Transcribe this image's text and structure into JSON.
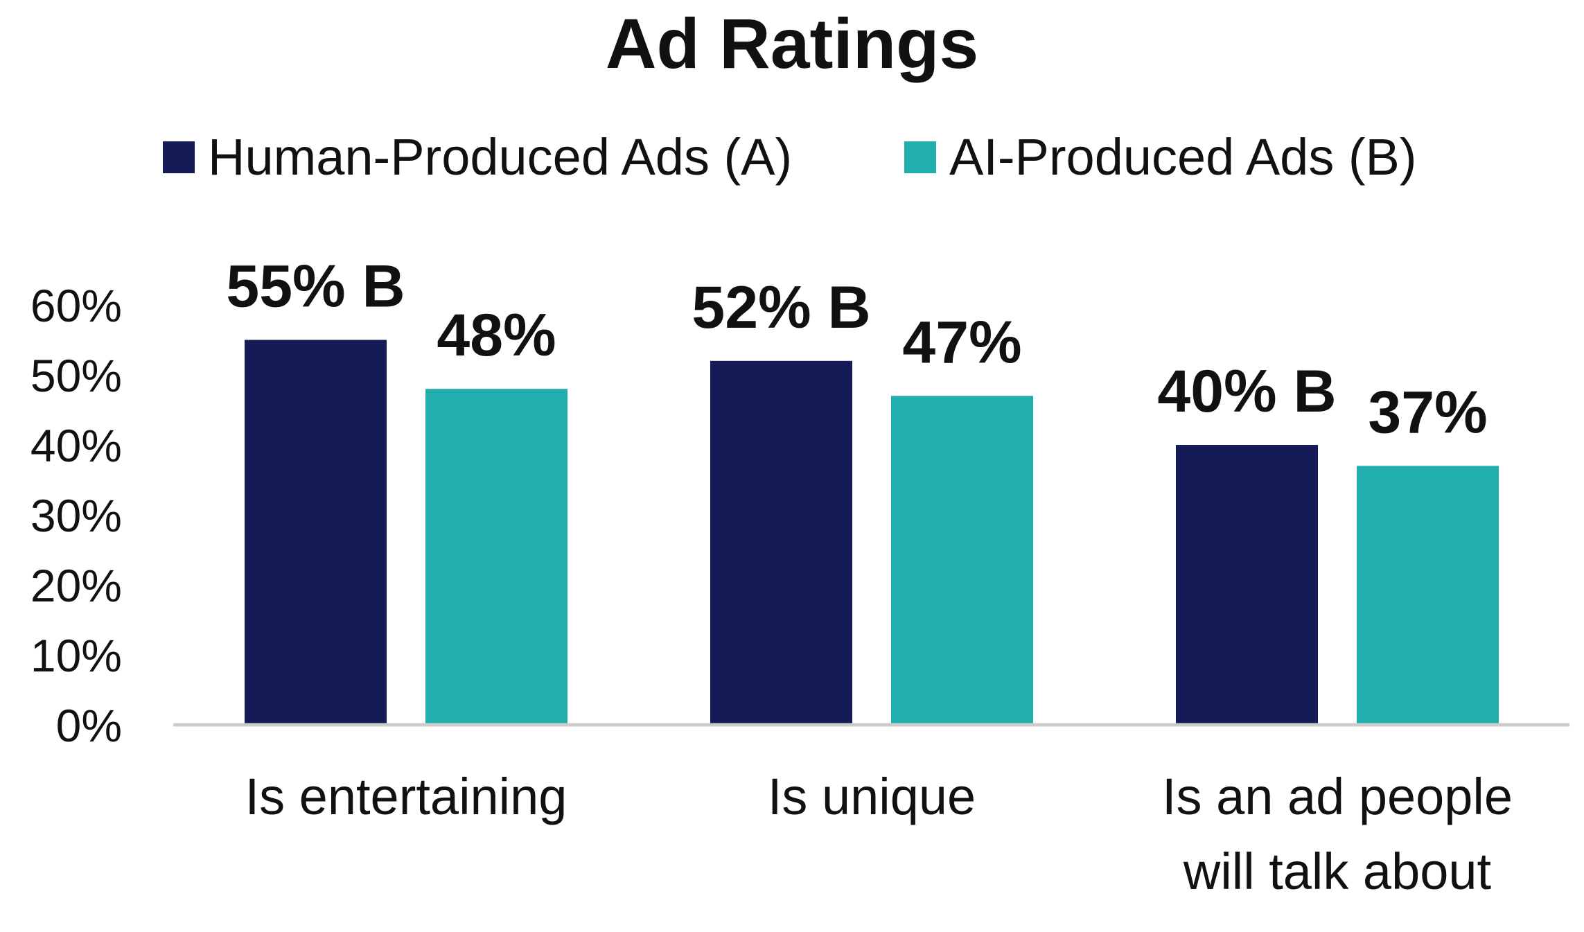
{
  "chart_data": {
    "type": "bar",
    "title": "Ad Ratings",
    "categories": [
      [
        "Is entertaining"
      ],
      [
        "Is unique"
      ],
      [
        "Is an ad people",
        "will talk about"
      ]
    ],
    "series": [
      {
        "name": "Human-Produced Ads (A)",
        "color": "#141b57",
        "values": [
          55,
          52,
          40
        ],
        "labels": [
          "55% B",
          "52% B",
          "40% B"
        ]
      },
      {
        "name": "AI-Produced Ads (B)",
        "color": "#20afad",
        "values": [
          48,
          47,
          37
        ],
        "labels": [
          "48%",
          "47%",
          "37%"
        ]
      }
    ],
    "yticks": [
      "0%",
      "10%",
      "20%",
      "30%",
      "40%",
      "50%",
      "60%"
    ],
    "ylim": [
      0,
      60
    ],
    "xlabel": "",
    "ylabel": "",
    "grid": false,
    "legend": "top-center",
    "axis_color": "#cccccc"
  }
}
